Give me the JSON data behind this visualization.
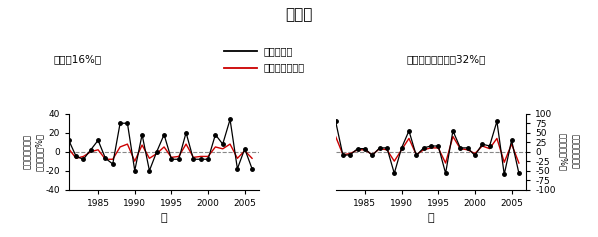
{
  "title": "コムギ",
  "legend_actual": "実際の豊凶",
  "legend_predicted": "予測された豊凶",
  "label_usa": "米国（16%）",
  "label_aus": "オーストラリア（32%）",
  "xlabel": "年",
  "ylabel_left": "当該年と前年の\n収量割合（%）",
  "ylabel_right": "当該年と前年の\n収量割合（%）",
  "years": [
    1981,
    1982,
    1983,
    1984,
    1985,
    1986,
    1987,
    1988,
    1989,
    1990,
    1991,
    1992,
    1993,
    1994,
    1995,
    1996,
    1997,
    1998,
    1999,
    2000,
    2001,
    2002,
    2003,
    2004,
    2005,
    2006
  ],
  "usa_actual": [
    12,
    -5,
    -8,
    2,
    12,
    -7,
    -13,
    30,
    30,
    -20,
    18,
    -20,
    0,
    18,
    -8,
    -8,
    20,
    -8,
    -8,
    -8,
    18,
    8,
    34,
    -18,
    3,
    -18
  ],
  "usa_predicted": [
    3,
    -7,
    -5,
    0,
    2,
    -8,
    -8,
    5,
    8,
    -10,
    7,
    -7,
    -2,
    5,
    -6,
    -5,
    8,
    -6,
    -5,
    -5,
    5,
    3,
    8,
    -7,
    1,
    -7
  ],
  "aus_actual": [
    80,
    -10,
    -8,
    8,
    8,
    -10,
    10,
    10,
    -57,
    10,
    55,
    -10,
    10,
    15,
    15,
    -57,
    55,
    10,
    10,
    -10,
    20,
    15,
    80,
    -60,
    30,
    -57
  ],
  "aus_predicted": [
    40,
    -8,
    -5,
    5,
    5,
    -8,
    8,
    5,
    -25,
    5,
    35,
    -8,
    5,
    10,
    10,
    -30,
    40,
    8,
    5,
    -5,
    15,
    8,
    35,
    -28,
    20,
    -30
  ],
  "usa_ylim": [
    -40,
    40
  ],
  "aus_ylim": [
    -100,
    100
  ],
  "usa_yticks": [
    -40,
    -20,
    0,
    20,
    40
  ],
  "aus_yticks": [
    -100,
    -75,
    -50,
    -25,
    0,
    25,
    50,
    75,
    100
  ],
  "xticks": [
    1985,
    1990,
    1995,
    2000,
    2005
  ],
  "xlim": [
    1981,
    2007
  ],
  "color_actual": "#000000",
  "color_predicted": "#cc0000",
  "color_dashed": "#888888"
}
